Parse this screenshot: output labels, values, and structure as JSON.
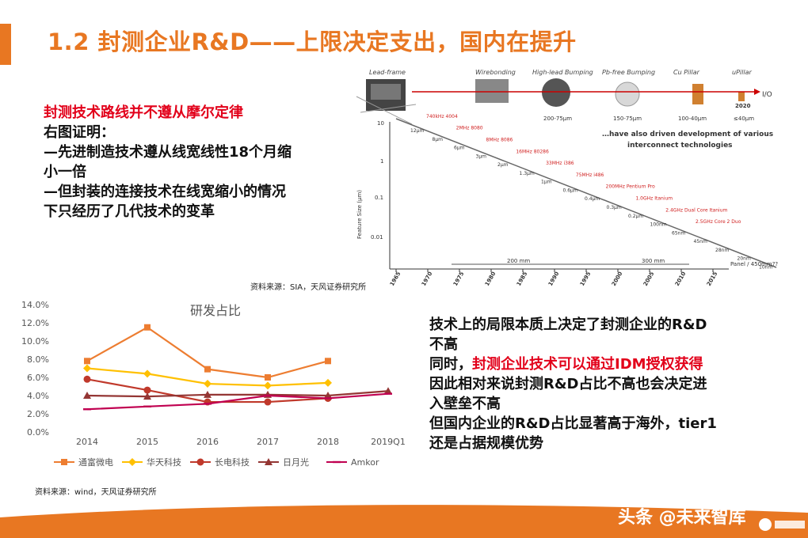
{
  "title": "1.2 封测企业R&D——上限决定支出，国内在提升",
  "left_text": {
    "heading": "封测技术路线并不遵从摩尔定律",
    "lines": [
      "右图证明：",
      "—先进制造技术遵从线宽线性18个月缩",
      "小一倍",
      "—但封装的连接技术在线宽缩小的情况",
      "下只经历了几代技术的变革"
    ]
  },
  "figure": {
    "tech_labels": [
      "Lead-frame",
      "Wirebonding",
      "High-lead Bumping",
      "Pb-free Bumping",
      "Cu Pillar",
      "uPillar"
    ],
    "pitch_labels": [
      "200-75μm",
      "150-75μm",
      "100-40μm",
      "≤40μm"
    ],
    "year_2020": "2020",
    "io_label": "I/O",
    "annotation": "…have also driven development of various interconnect technologies",
    "y_axis_label": "Feature Size (μm)",
    "y_ticks": [
      "10",
      "1",
      "0.1",
      "0.01"
    ],
    "x_ticks": [
      "1965",
      "1970",
      "1975",
      "1980",
      "1985",
      "1990",
      "1995",
      "2000",
      "2005",
      "2010",
      "2015"
    ],
    "feature_sizes": [
      "12μm",
      "8μm",
      "6μm",
      "3μm",
      "2μm",
      "1.3μm",
      "1μm",
      "0.6μm",
      "0.4μm",
      "0.3μm",
      "0.2μm",
      "100nm",
      "65nm",
      "45nm",
      "28nm",
      "20nm",
      "10nm"
    ],
    "processors": [
      "740kHz 4004",
      "2MHz 8080",
      "8MHz 8086",
      "16MHz 80286",
      "33MHz i386",
      "75MHz i486",
      "200MHz Pentium Pro",
      "1.0GHz Itanium",
      "2.4GHz Dual Core Itanium",
      "2.5GHz Core 2 Duo"
    ],
    "wafer_labels": [
      "200 mm",
      "300 mm",
      "Panel / 450mm??"
    ],
    "source": "资料来源：SIA，天风证券研究所"
  },
  "chart_data": {
    "type": "line",
    "title": "研发占比",
    "categories": [
      "2014",
      "2015",
      "2016",
      "2017",
      "2018",
      "2019Q1"
    ],
    "y_ticks": [
      "14.0%",
      "12.0%",
      "10.0%",
      "8.0%",
      "6.0%",
      "4.0%",
      "2.0%",
      "0.0%"
    ],
    "ylim": [
      0,
      14
    ],
    "series": [
      {
        "name": "通富微电",
        "color": "#ed7d31",
        "marker": "square",
        "values": [
          7.8,
          11.5,
          6.9,
          6.0,
          7.8,
          null
        ]
      },
      {
        "name": "华天科技",
        "color": "#ffc000",
        "marker": "diamond",
        "values": [
          7.0,
          6.4,
          5.3,
          5.1,
          5.4,
          null
        ]
      },
      {
        "name": "长电科技",
        "color": "#c0392b",
        "marker": "circle",
        "values": [
          5.8,
          4.6,
          3.3,
          3.3,
          3.7,
          null
        ]
      },
      {
        "name": "日月光",
        "color": "#943634",
        "marker": "triangle",
        "values": [
          4.0,
          3.9,
          4.1,
          4.1,
          4.0,
          4.5
        ]
      },
      {
        "name": "Amkor",
        "color": "#c00050",
        "marker": "dash",
        "values": [
          2.5,
          2.8,
          3.1,
          4.0,
          3.7,
          4.2
        ]
      }
    ],
    "legend": "bottom",
    "grid": false
  },
  "chart_source": "资料来源：wind，天风证券研究所",
  "right_text": {
    "line1": "技术上的局限本质上决定了封测企业的R&D",
    "line2": "不高",
    "line3_prefix": "同时，",
    "line3_red": "封测企业技术可以通过IDM授权获得",
    "line4": "因此相对来说封测R&D占比不高也会决定进",
    "line5": "入壁垒不高",
    "line6": "但国内企业的R&D占比显著高于海外，tier1",
    "line7": "还是占据规模优势"
  },
  "watermark": "头条 @未来智库",
  "colors": {
    "accent": "#e87722",
    "red": "#e2001a"
  }
}
